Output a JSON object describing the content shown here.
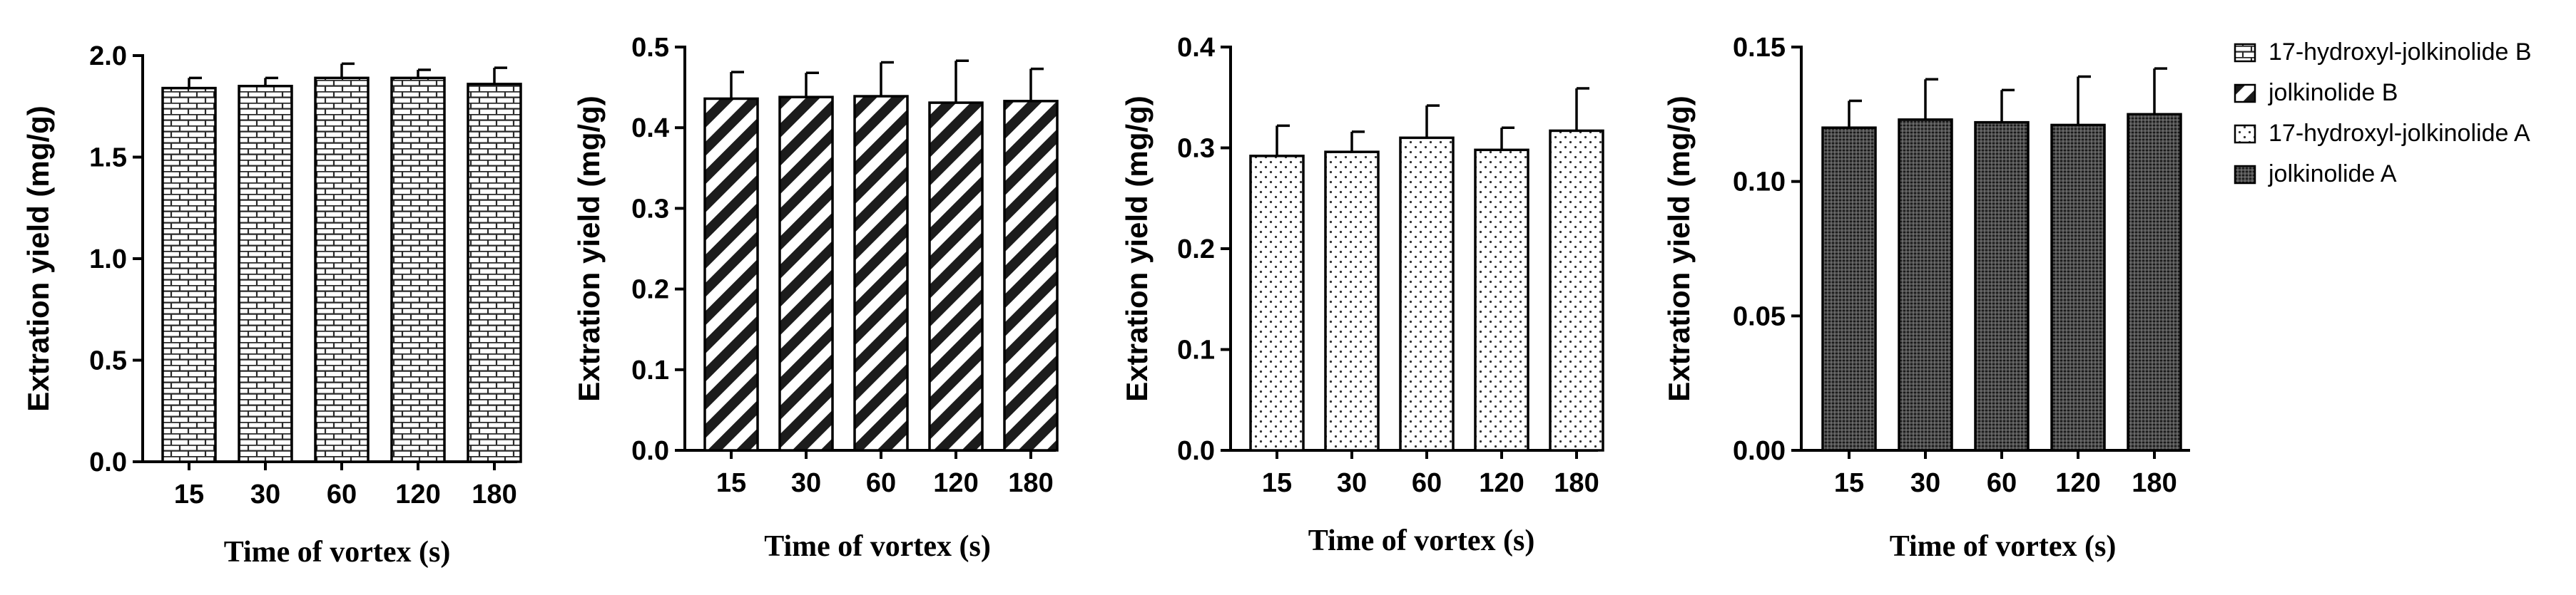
{
  "legend": [
    {
      "label": "17-hydroxyl-jolkinolide B",
      "pattern": "brick"
    },
    {
      "label": "jolkinolide B",
      "pattern": "diag"
    },
    {
      "label": "17-hydroxyl-jolkinolide A",
      "pattern": "dots"
    },
    {
      "label": "jolkinolide A",
      "pattern": "dense"
    }
  ],
  "chart_data": [
    {
      "type": "bar",
      "categories": [
        "15",
        "30",
        "60",
        "120",
        "180"
      ],
      "series": [
        {
          "name": "17-hydroxyl-jolkinolide B",
          "values": [
            1.84,
            1.85,
            1.89,
            1.89,
            1.86
          ],
          "error": [
            0.05,
            0.04,
            0.07,
            0.04,
            0.08
          ]
        }
      ],
      "xlabel": "Time of vortex (s)",
      "ylabel": "Extration yield  (mg/g)",
      "ylim": [
        0,
        2.0
      ],
      "yticks": [
        "0.0",
        "0.5",
        "1.0",
        "1.5",
        "2.0"
      ],
      "ytick_values": [
        0,
        0.5,
        1.0,
        1.5,
        2.0
      ],
      "pattern": "brick",
      "grid": false
    },
    {
      "type": "bar",
      "categories": [
        "15",
        "30",
        "60",
        "120",
        "180"
      ],
      "series": [
        {
          "name": "jolkinolide B",
          "values": [
            0.436,
            0.438,
            0.439,
            0.431,
            0.433
          ],
          "error": [
            0.033,
            0.03,
            0.042,
            0.052,
            0.04
          ]
        }
      ],
      "xlabel": "Time of vortex (s)",
      "ylabel": "Extration yield  (mg/g)",
      "ylim": [
        0,
        0.5
      ],
      "yticks": [
        "0.0",
        "0.1",
        "0.2",
        "0.3",
        "0.4",
        "0.5"
      ],
      "ytick_values": [
        0,
        0.1,
        0.2,
        0.3,
        0.4,
        0.5
      ],
      "pattern": "diag",
      "grid": false
    },
    {
      "type": "bar",
      "categories": [
        "15",
        "30",
        "60",
        "120",
        "180"
      ],
      "series": [
        {
          "name": "17-hydroxyl-jolkinolide A",
          "values": [
            0.292,
            0.296,
            0.31,
            0.298,
            0.317
          ],
          "error": [
            0.03,
            0.02,
            0.032,
            0.022,
            0.042
          ]
        }
      ],
      "xlabel": "Time of vortex (s)",
      "ylabel": "Extration yield  (mg/g)",
      "ylim": [
        0,
        0.4
      ],
      "yticks": [
        "0.0",
        "0.1",
        "0.2",
        "0.3",
        "0.4"
      ],
      "ytick_values": [
        0,
        0.1,
        0.2,
        0.3,
        0.4
      ],
      "pattern": "dots",
      "grid": false
    },
    {
      "type": "bar",
      "categories": [
        "15",
        "30",
        "60",
        "120",
        "180"
      ],
      "series": [
        {
          "name": "jolkinolide A",
          "values": [
            0.12,
            0.123,
            0.122,
            0.121,
            0.125
          ],
          "error": [
            0.01,
            0.015,
            0.012,
            0.018,
            0.017
          ]
        }
      ],
      "xlabel": "Time of vortex (s)",
      "ylabel": "Extration yield  (mg/g)",
      "ylim": [
        0,
        0.15
      ],
      "yticks": [
        "0.00",
        "0.05",
        "0.10",
        "0.15"
      ],
      "ytick_values": [
        0,
        0.05,
        0.1,
        0.15
      ],
      "pattern": "dense",
      "grid": false
    }
  ]
}
